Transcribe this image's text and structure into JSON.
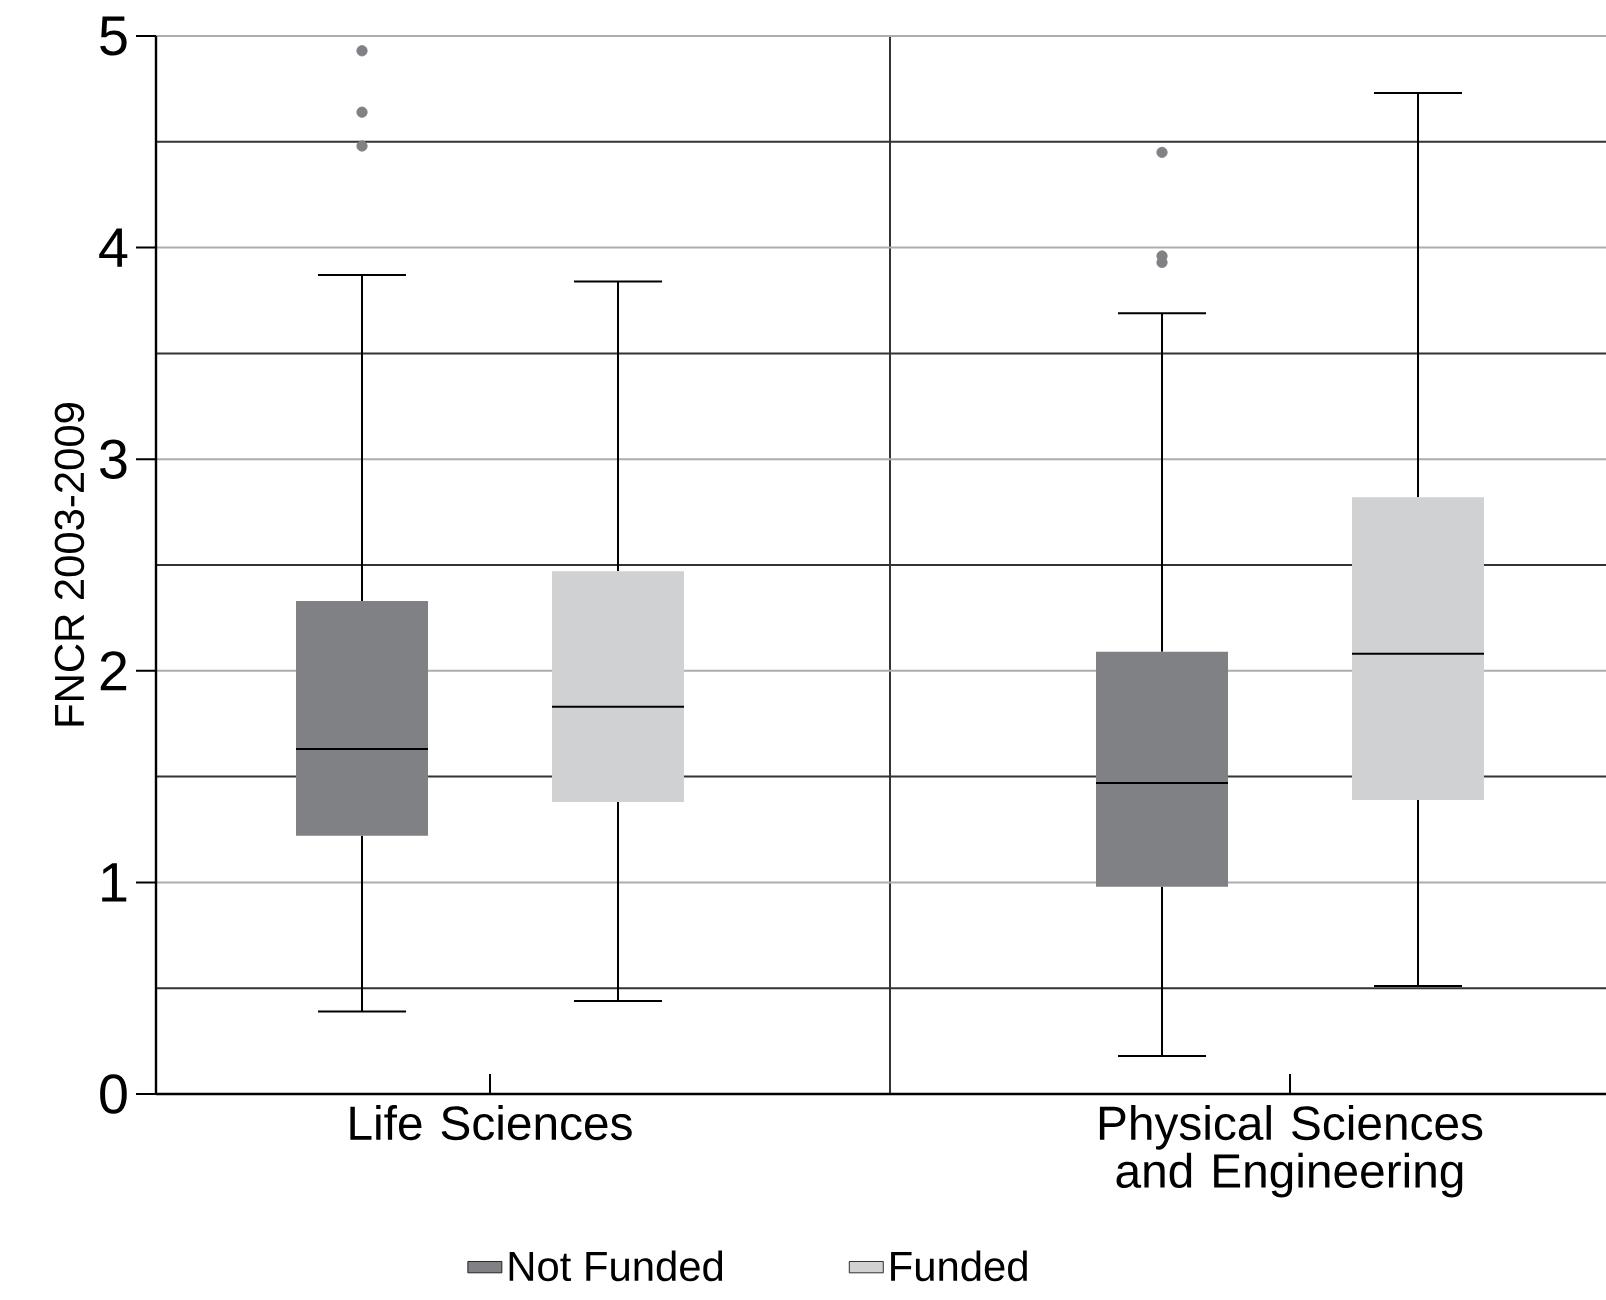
{
  "chart_data": {
    "type": "box",
    "ylabel": "FNCR 2003-2009",
    "categories": [
      "Life Sciences",
      "Physical Sciences and Engineering"
    ],
    "series": [
      {
        "name": "Not Funded",
        "color": "#808184",
        "boxes": [
          {
            "low": 0.39,
            "q1": 1.22,
            "median": 1.63,
            "q3": 2.33,
            "high": 3.87,
            "outliers": [
              4.48,
              4.64,
              4.93
            ]
          },
          {
            "low": 0.18,
            "q1": 0.98,
            "median": 1.47,
            "q3": 2.09,
            "high": 3.69,
            "outliers": [
              3.93,
              3.96,
              4.45
            ]
          }
        ]
      },
      {
        "name": "Funded",
        "color": "#d0d1d3",
        "boxes": [
          {
            "low": 0.44,
            "q1": 1.38,
            "median": 1.83,
            "q3": 2.47,
            "high": 3.84
          },
          {
            "low": 0.51,
            "q1": 1.39,
            "median": 2.08,
            "q3": 2.82,
            "high": 4.73
          }
        ]
      }
    ],
    "ylim": [
      0,
      5
    ],
    "yticks": [
      0,
      1,
      2,
      3,
      4,
      5
    ],
    "grid": true,
    "legend": "bottom"
  }
}
